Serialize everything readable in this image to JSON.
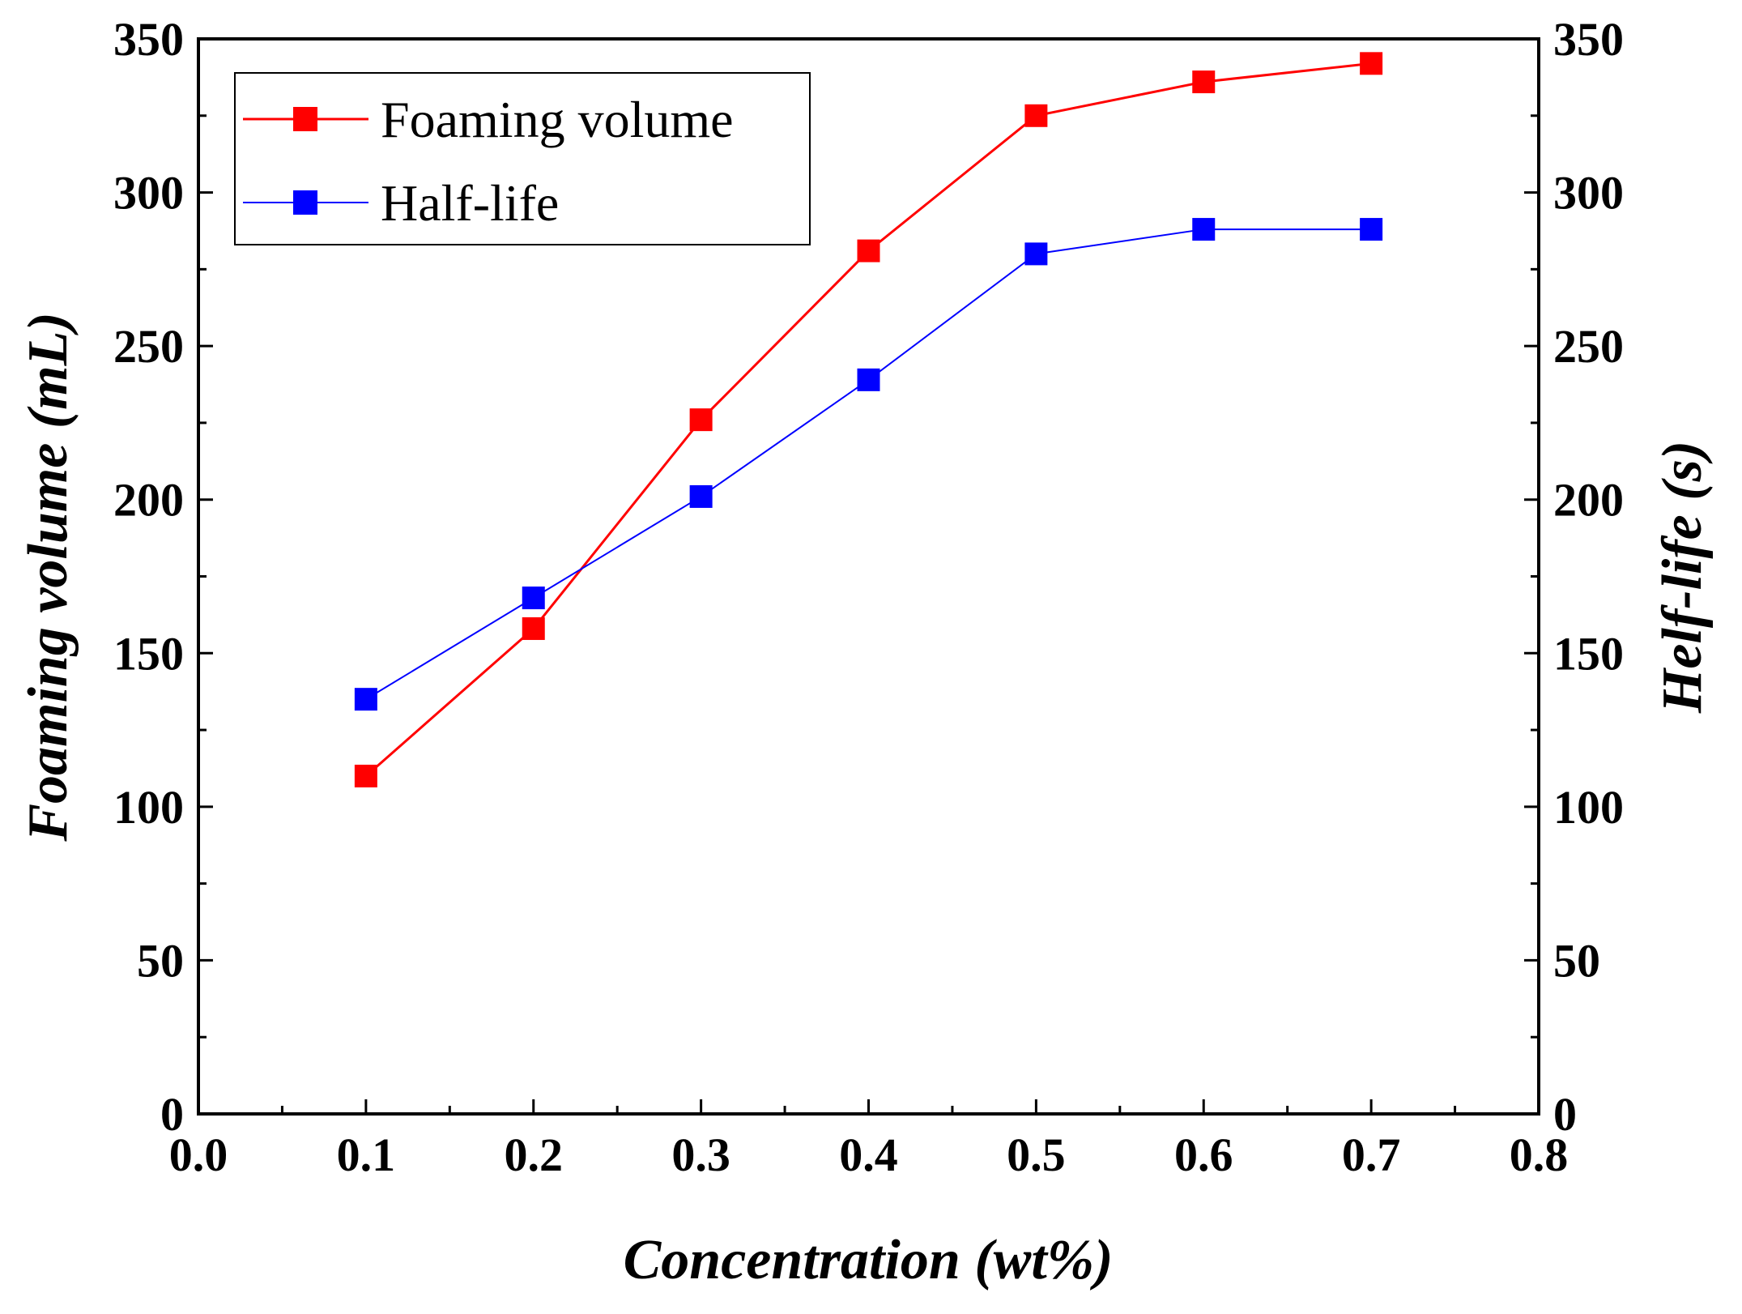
{
  "chart_data": {
    "type": "line",
    "title": "",
    "xlabel": "Concentration (wt%)",
    "ylabel": "Foaming volume (mL)",
    "y2label": "Helf-life (s)",
    "xlim": [
      0.0,
      0.8
    ],
    "ylim": [
      0,
      350
    ],
    "y2lim": [
      0,
      350
    ],
    "x_ticks": [
      "0.0",
      "0.1",
      "0.2",
      "0.3",
      "0.4",
      "0.5",
      "0.6",
      "0.7",
      "0.8"
    ],
    "y_ticks": [
      "0",
      "50",
      "100",
      "150",
      "200",
      "250",
      "300",
      "350"
    ],
    "y2_ticks": [
      "0",
      "50",
      "100",
      "150",
      "200",
      "250",
      "300",
      "350"
    ],
    "grid": false,
    "legend_position": "top-left",
    "x": [
      0.1,
      0.2,
      0.3,
      0.4,
      0.5,
      0.6,
      0.7
    ],
    "series": [
      {
        "name": "Foaming volume",
        "axis": "left",
        "color": "#ff0000",
        "marker": "square",
        "values": [
          110,
          158,
          226,
          281,
          325,
          336,
          342
        ]
      },
      {
        "name": "Half-life",
        "axis": "right",
        "color": "#0000ff",
        "marker": "square",
        "values": [
          135,
          168,
          201,
          239,
          280,
          288,
          288
        ]
      }
    ]
  }
}
